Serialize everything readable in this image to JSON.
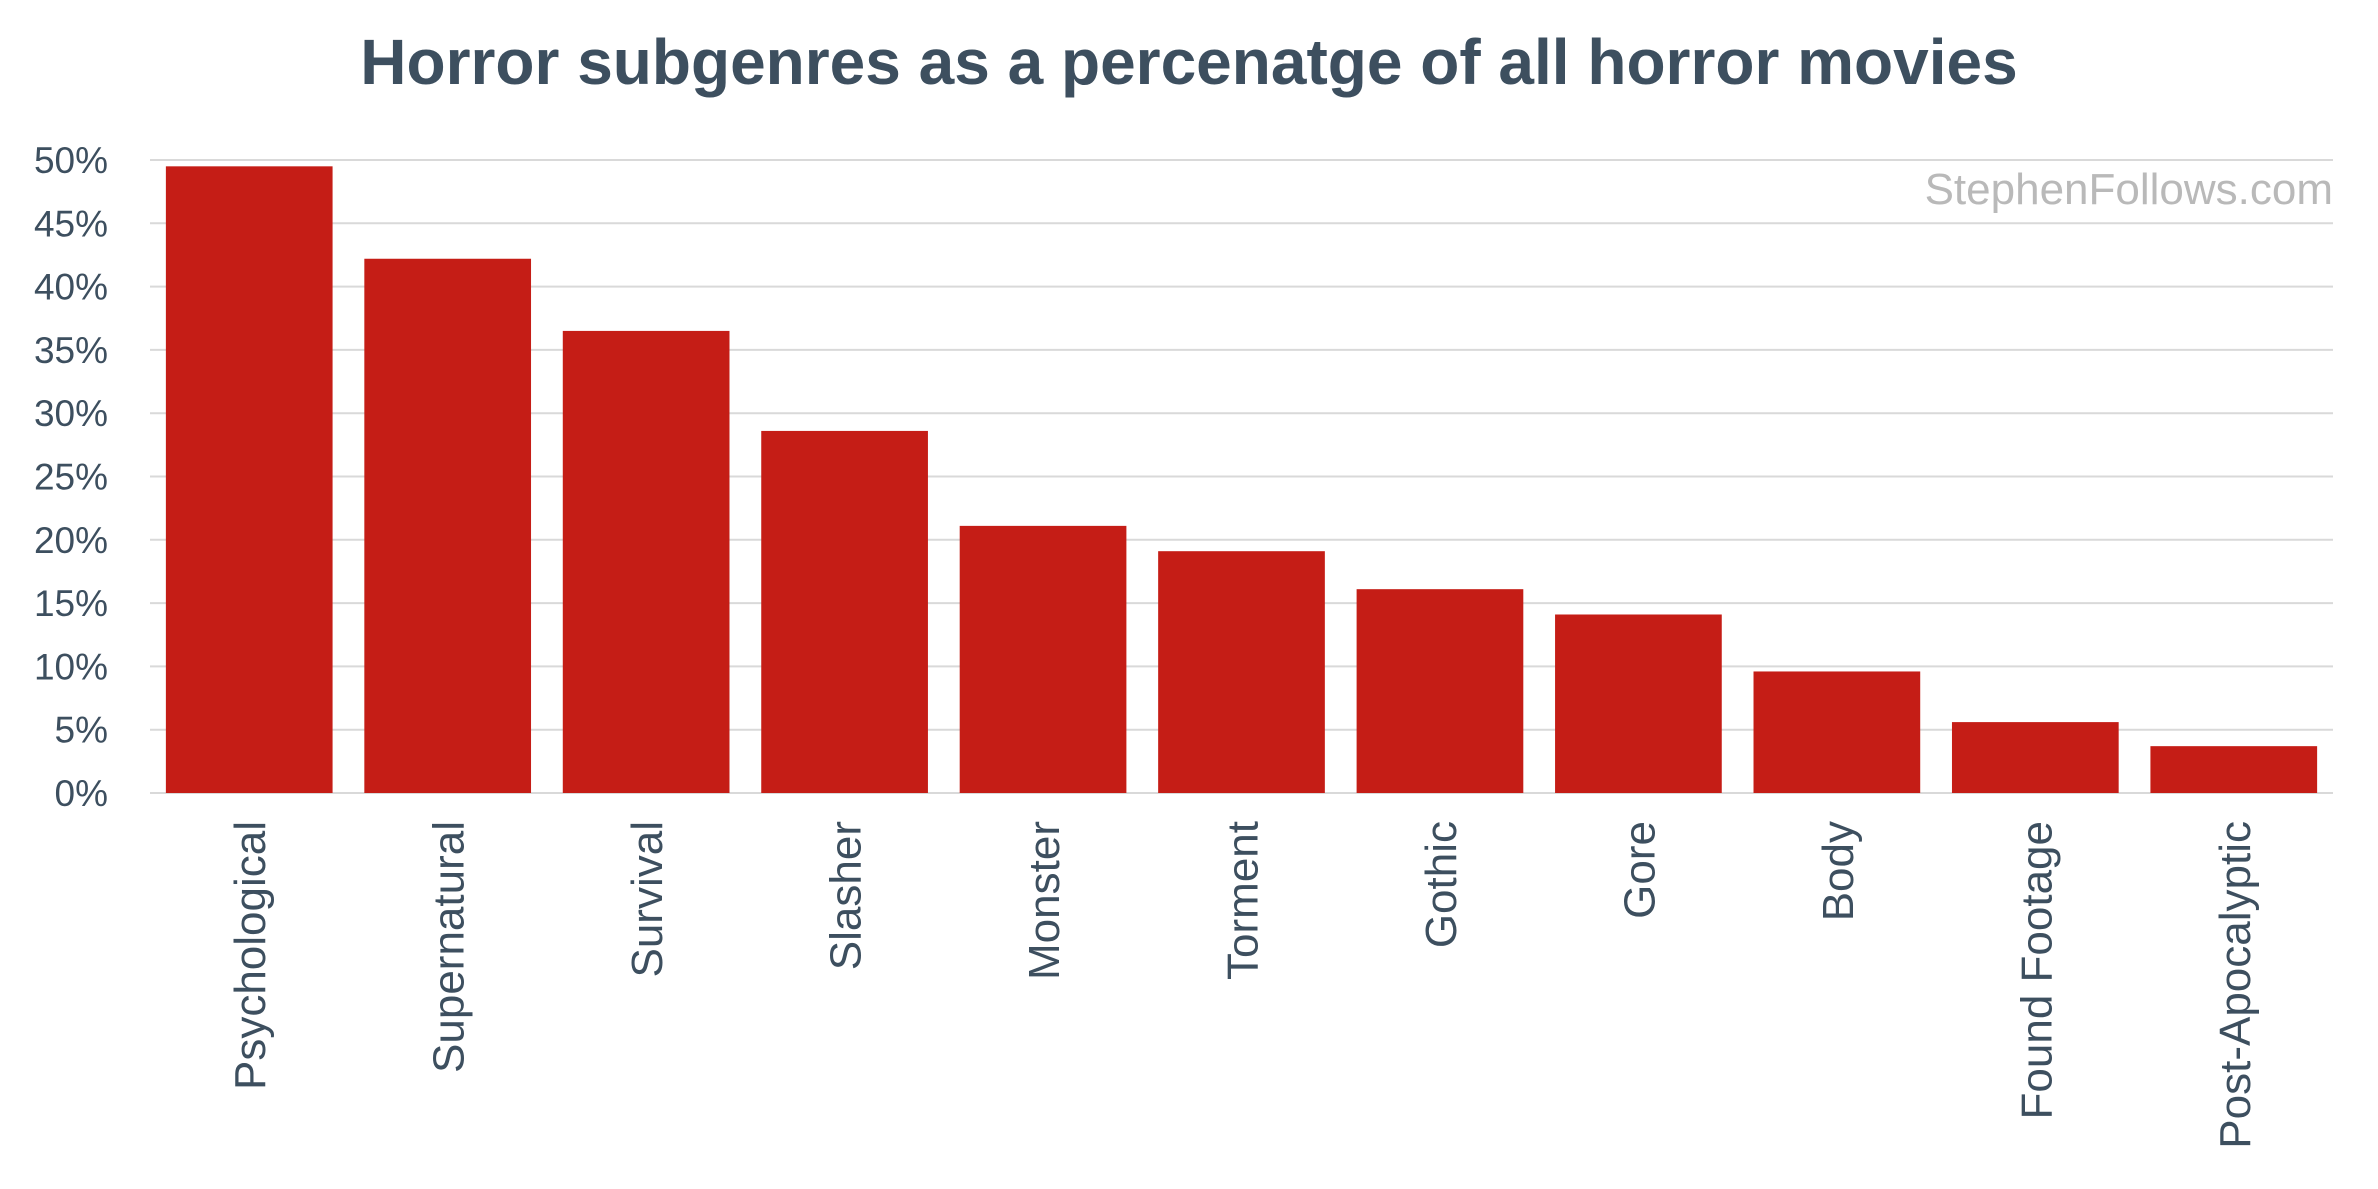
{
  "chart_data": {
    "type": "bar",
    "title": "Horror subgenres as a percenatge of all horror movies",
    "xlabel": "",
    "ylabel": "",
    "categories": [
      "Psychological",
      "Supernatural",
      "Survival",
      "Slasher",
      "Monster",
      "Torment",
      "Gothic",
      "Gore",
      "Body",
      "Found Footage",
      "Post-Apocalyptic"
    ],
    "values": [
      49.5,
      42.2,
      36.5,
      28.6,
      21.1,
      19.1,
      16.1,
      14.1,
      9.6,
      5.6,
      3.7
    ],
    "value_format": "percent",
    "ylim": [
      0,
      50
    ],
    "yticks": [
      0,
      5,
      10,
      15,
      20,
      25,
      30,
      35,
      40,
      45,
      50
    ],
    "ytick_labels": [
      "0%",
      "5%",
      "10%",
      "15%",
      "20%",
      "25%",
      "30%",
      "35%",
      "40%",
      "45%",
      "50%"
    ],
    "grid": true,
    "legend": "none",
    "watermark": "StephenFollows.com"
  },
  "colors": {
    "bar": "#c51d16",
    "title": "#3d4f5f",
    "tick_text": "#3d4f5f",
    "category_text": "#3d4f5f",
    "gridline": "#d9d9d9",
    "watermark": "#b9b9b9"
  }
}
